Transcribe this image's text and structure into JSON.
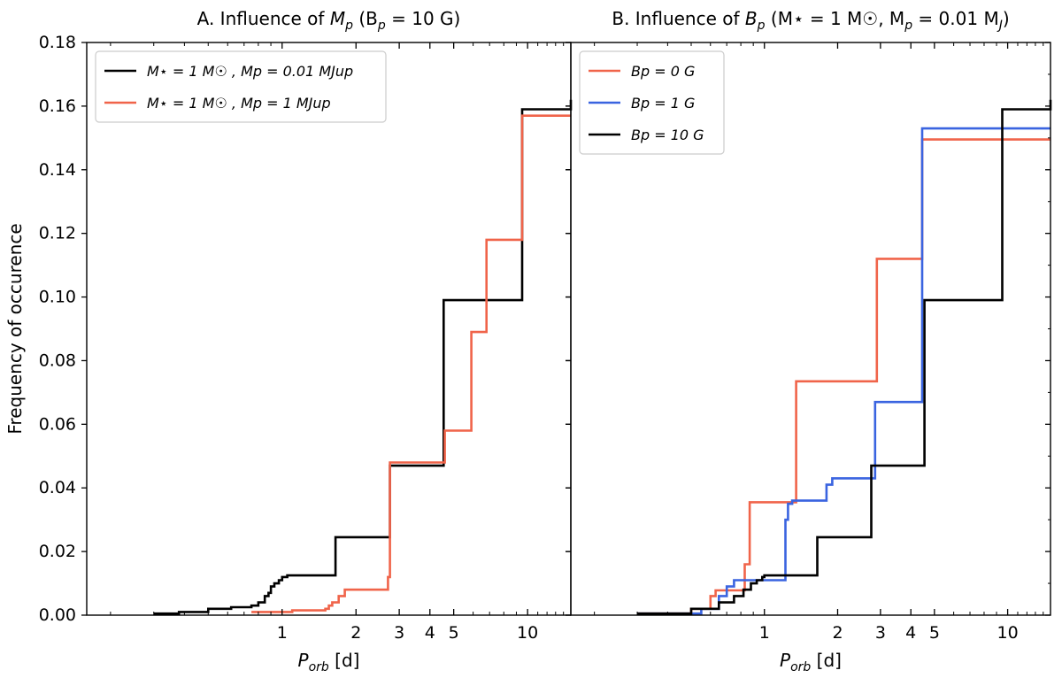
{
  "chart_data": [
    {
      "type": "line",
      "step": true,
      "title": "A. Influence of M_p (B_p = 10 G)",
      "title_parts": {
        "prefix": "A. Influence of ",
        "var": "M",
        "var_sub": "p",
        "suffix": " (B",
        "sub2": "p",
        "tail": " = 10 G)"
      },
      "xlabel": "P_orb [d]",
      "xlabel_parts": {
        "var": "P",
        "sub": "orb",
        "unit": " [d]"
      },
      "ylabel": "Frequency of occurence",
      "xscale": "log",
      "xlim": [
        0.16,
        15
      ],
      "ylim": [
        0,
        0.18
      ],
      "xticks": [
        1,
        2,
        3,
        4,
        5,
        10
      ],
      "xtick_labels": [
        "1",
        "2",
        "3",
        "4",
        "5",
        "10"
      ],
      "yticks": [
        0,
        0.02,
        0.04,
        0.06,
        0.08,
        0.1,
        0.12,
        0.14,
        0.16,
        0.18
      ],
      "ytick_labels": [
        "0.00",
        "0.02",
        "0.04",
        "0.06",
        "0.08",
        "0.10",
        "0.12",
        "0.14",
        "0.16",
        "0.18"
      ],
      "legend_position": "top-left",
      "series": [
        {
          "name": "M★ = 1 M☉ , M_p = 0.01 M_Jup",
          "legend_text": "M⋆ = 1 M☉ ,  Mp = 0.01 MJup",
          "color": "#000000",
          "x": [
            0.3,
            0.38,
            0.5,
            0.62,
            0.75,
            0.8,
            0.85,
            0.88,
            0.9,
            0.93,
            0.97,
            1.0,
            1.05,
            1.6,
            1.65,
            2.7,
            2.75,
            4.4,
            4.55,
            6.8,
            9.5,
            15
          ],
          "y": [
            0.0005,
            0.001,
            0.002,
            0.0025,
            0.003,
            0.004,
            0.006,
            0.007,
            0.009,
            0.01,
            0.011,
            0.012,
            0.0125,
            0.0125,
            0.0245,
            0.0245,
            0.047,
            0.047,
            0.099,
            0.099,
            0.159,
            0.162
          ]
        },
        {
          "name": "M★ = 1 M☉ , M_p = 1 M_Jup",
          "legend_text": "M⋆ = 1 M☉ ,  Mp = 1 MJup",
          "color": "#f0644a",
          "x": [
            0.75,
            1.1,
            1.5,
            1.55,
            1.6,
            1.7,
            1.8,
            2.65,
            2.7,
            2.75,
            4.5,
            4.6,
            5.8,
            5.9,
            6.8,
            9.5,
            15
          ],
          "y": [
            0.001,
            0.0015,
            0.002,
            0.003,
            0.004,
            0.006,
            0.008,
            0.008,
            0.012,
            0.048,
            0.048,
            0.058,
            0.058,
            0.089,
            0.118,
            0.157,
            0.157
          ]
        }
      ]
    },
    {
      "type": "line",
      "step": true,
      "title": "B. Influence of B_p (M★ = 1 M☉, M_p = 0.01 M_J)",
      "title_parts": {
        "prefix": "B. Influence of ",
        "var": "B",
        "var_sub": "p",
        "rest": " (M⋆ = 1 M☉,  M",
        "sub2": "p",
        "rest2": " = 0.01 M",
        "sub3": "J",
        "tail": ")"
      },
      "xlabel": "P_orb [d]",
      "xlabel_parts": {
        "var": "P",
        "sub": "orb",
        "unit": " [d]"
      },
      "xscale": "log",
      "xlim": [
        0.16,
        15
      ],
      "ylim": [
        0,
        0.18
      ],
      "xticks": [
        1,
        2,
        3,
        4,
        5,
        10
      ],
      "xtick_labels": [
        "1",
        "2",
        "3",
        "4",
        "5",
        "10"
      ],
      "yticks": [
        0,
        0.02,
        0.04,
        0.06,
        0.08,
        0.1,
        0.12,
        0.14,
        0.16,
        0.18
      ],
      "legend_position": "top-left",
      "series": [
        {
          "name": "B_p = 0 G",
          "legend_text": "Bp = 0 G",
          "color": "#f0644a",
          "x": [
            0.3,
            0.5,
            0.6,
            0.63,
            0.8,
            0.83,
            0.87,
            1.3,
            1.35,
            2.9,
            4.45,
            15
          ],
          "y": [
            0.0005,
            0.002,
            0.006,
            0.0078,
            0.0078,
            0.016,
            0.0355,
            0.0355,
            0.0735,
            0.112,
            0.1495,
            0.1495
          ]
        },
        {
          "name": "B_p = 1 G",
          "legend_text": "Bp = 1 G",
          "color": "#3a64e0",
          "x": [
            0.3,
            0.55,
            0.65,
            0.7,
            0.75,
            1.2,
            1.22,
            1.25,
            1.3,
            1.75,
            1.8,
            1.9,
            2.8,
            2.85,
            4.45,
            15
          ],
          "y": [
            0.0005,
            0.002,
            0.006,
            0.009,
            0.011,
            0.011,
            0.03,
            0.035,
            0.036,
            0.036,
            0.041,
            0.043,
            0.043,
            0.067,
            0.153,
            0.153
          ]
        },
        {
          "name": "B_p = 10 G",
          "legend_text": "Bp = 10 G",
          "color": "#000000",
          "x": [
            0.3,
            0.5,
            0.65,
            0.75,
            0.82,
            0.88,
            0.93,
            0.98,
            1.0,
            1.6,
            1.65,
            2.7,
            2.75,
            4.4,
            4.55,
            6.8,
            9.5,
            15
          ],
          "y": [
            0.0005,
            0.002,
            0.004,
            0.006,
            0.008,
            0.01,
            0.011,
            0.012,
            0.0125,
            0.0125,
            0.0245,
            0.0245,
            0.047,
            0.047,
            0.099,
            0.099,
            0.159,
            0.162
          ]
        }
      ]
    }
  ]
}
